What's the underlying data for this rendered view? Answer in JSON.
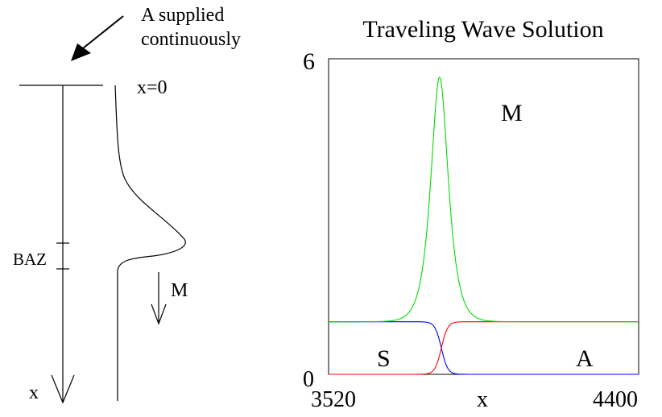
{
  "schematic": {
    "supply_label_line1": "A supplied",
    "supply_label_line2": "continuously",
    "surface_label": "x=0",
    "zone_label": "BAZ",
    "arrow_label_m": "M",
    "depth_label": "x"
  },
  "chart_data": {
    "type": "line",
    "title": "Traveling Wave Solution",
    "xlabel": "x",
    "ylabel": "",
    "xlim": [
      3520,
      4400
    ],
    "ylim": [
      0,
      6
    ],
    "x_ticks": [
      "3520",
      "4400"
    ],
    "y_ticks": [
      "0",
      "6"
    ],
    "grid": false,
    "series": [
      {
        "name": "M",
        "color": "#00dd00",
        "peak_x": 3835,
        "peak_y": 5.65,
        "baseline": 1.0
      },
      {
        "name": "S",
        "color": "#0000ff",
        "left_value": 1.0,
        "right_value": 0.0,
        "transition_x": 3840
      },
      {
        "name": "A",
        "color": "#ff0000",
        "left_value": 0.0,
        "right_value": 1.0,
        "transition_x": 3840
      }
    ]
  }
}
